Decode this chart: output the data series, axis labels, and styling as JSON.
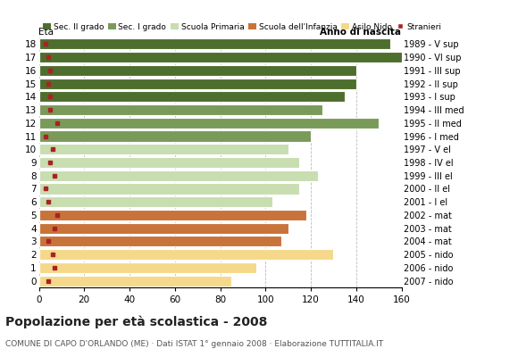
{
  "ages": [
    18,
    17,
    16,
    15,
    14,
    13,
    12,
    11,
    10,
    9,
    8,
    7,
    6,
    5,
    4,
    3,
    2,
    1,
    0
  ],
  "values": [
    155,
    160,
    140,
    140,
    135,
    125,
    150,
    120,
    110,
    115,
    123,
    115,
    103,
    118,
    110,
    107,
    130,
    96,
    85
  ],
  "stranieri": [
    3,
    4,
    5,
    4,
    5,
    5,
    8,
    3,
    6,
    5,
    7,
    3,
    4,
    8,
    7,
    4,
    6,
    7,
    4
  ],
  "anno_nascita": [
    "1989 - V sup",
    "1990 - VI sup",
    "1991 - III sup",
    "1992 - II sup",
    "1993 - I sup",
    "1994 - III med",
    "1995 - II med",
    "1996 - I med",
    "1997 - V el",
    "1998 - IV el",
    "1999 - III el",
    "2000 - II el",
    "2001 - I el",
    "2002 - mat",
    "2003 - mat",
    "2004 - mat",
    "2005 - nido",
    "2006 - nido",
    "2007 - nido"
  ],
  "bar_colors": [
    "#4e6e2e",
    "#4e6e2e",
    "#4e6e2e",
    "#4e6e2e",
    "#4e6e2e",
    "#7a9a5a",
    "#7a9a5a",
    "#7a9a5a",
    "#c8ddb0",
    "#c8ddb0",
    "#c8ddb0",
    "#c8ddb0",
    "#c8ddb0",
    "#c8733a",
    "#c8733a",
    "#c8733a",
    "#f5d88a",
    "#f5d88a",
    "#f5d88a"
  ],
  "legend_labels": [
    "Sec. II grado",
    "Sec. I grado",
    "Scuola Primaria",
    "Scuola dell'Infanzia",
    "Asilo Nido",
    "Stranieri"
  ],
  "legend_colors": [
    "#4e6e2e",
    "#7a9a5a",
    "#c8ddb0",
    "#c8733a",
    "#f5d88a",
    "#aa2222"
  ],
  "stranieri_color": "#aa2222",
  "title": "Popolazione per età scolastica - 2008",
  "subtitle": "COMUNE DI CAPO D'ORLANDO (ME) · Dati ISTAT 1° gennaio 2008 · Elaborazione TUTTITALIA.IT",
  "xlabel_eta": "Età",
  "xlabel_anno": "Anno di nascita",
  "xlim": [
    0,
    160
  ],
  "xticks": [
    0,
    20,
    40,
    60,
    80,
    100,
    120,
    140,
    160
  ],
  "bar_height": 0.82
}
